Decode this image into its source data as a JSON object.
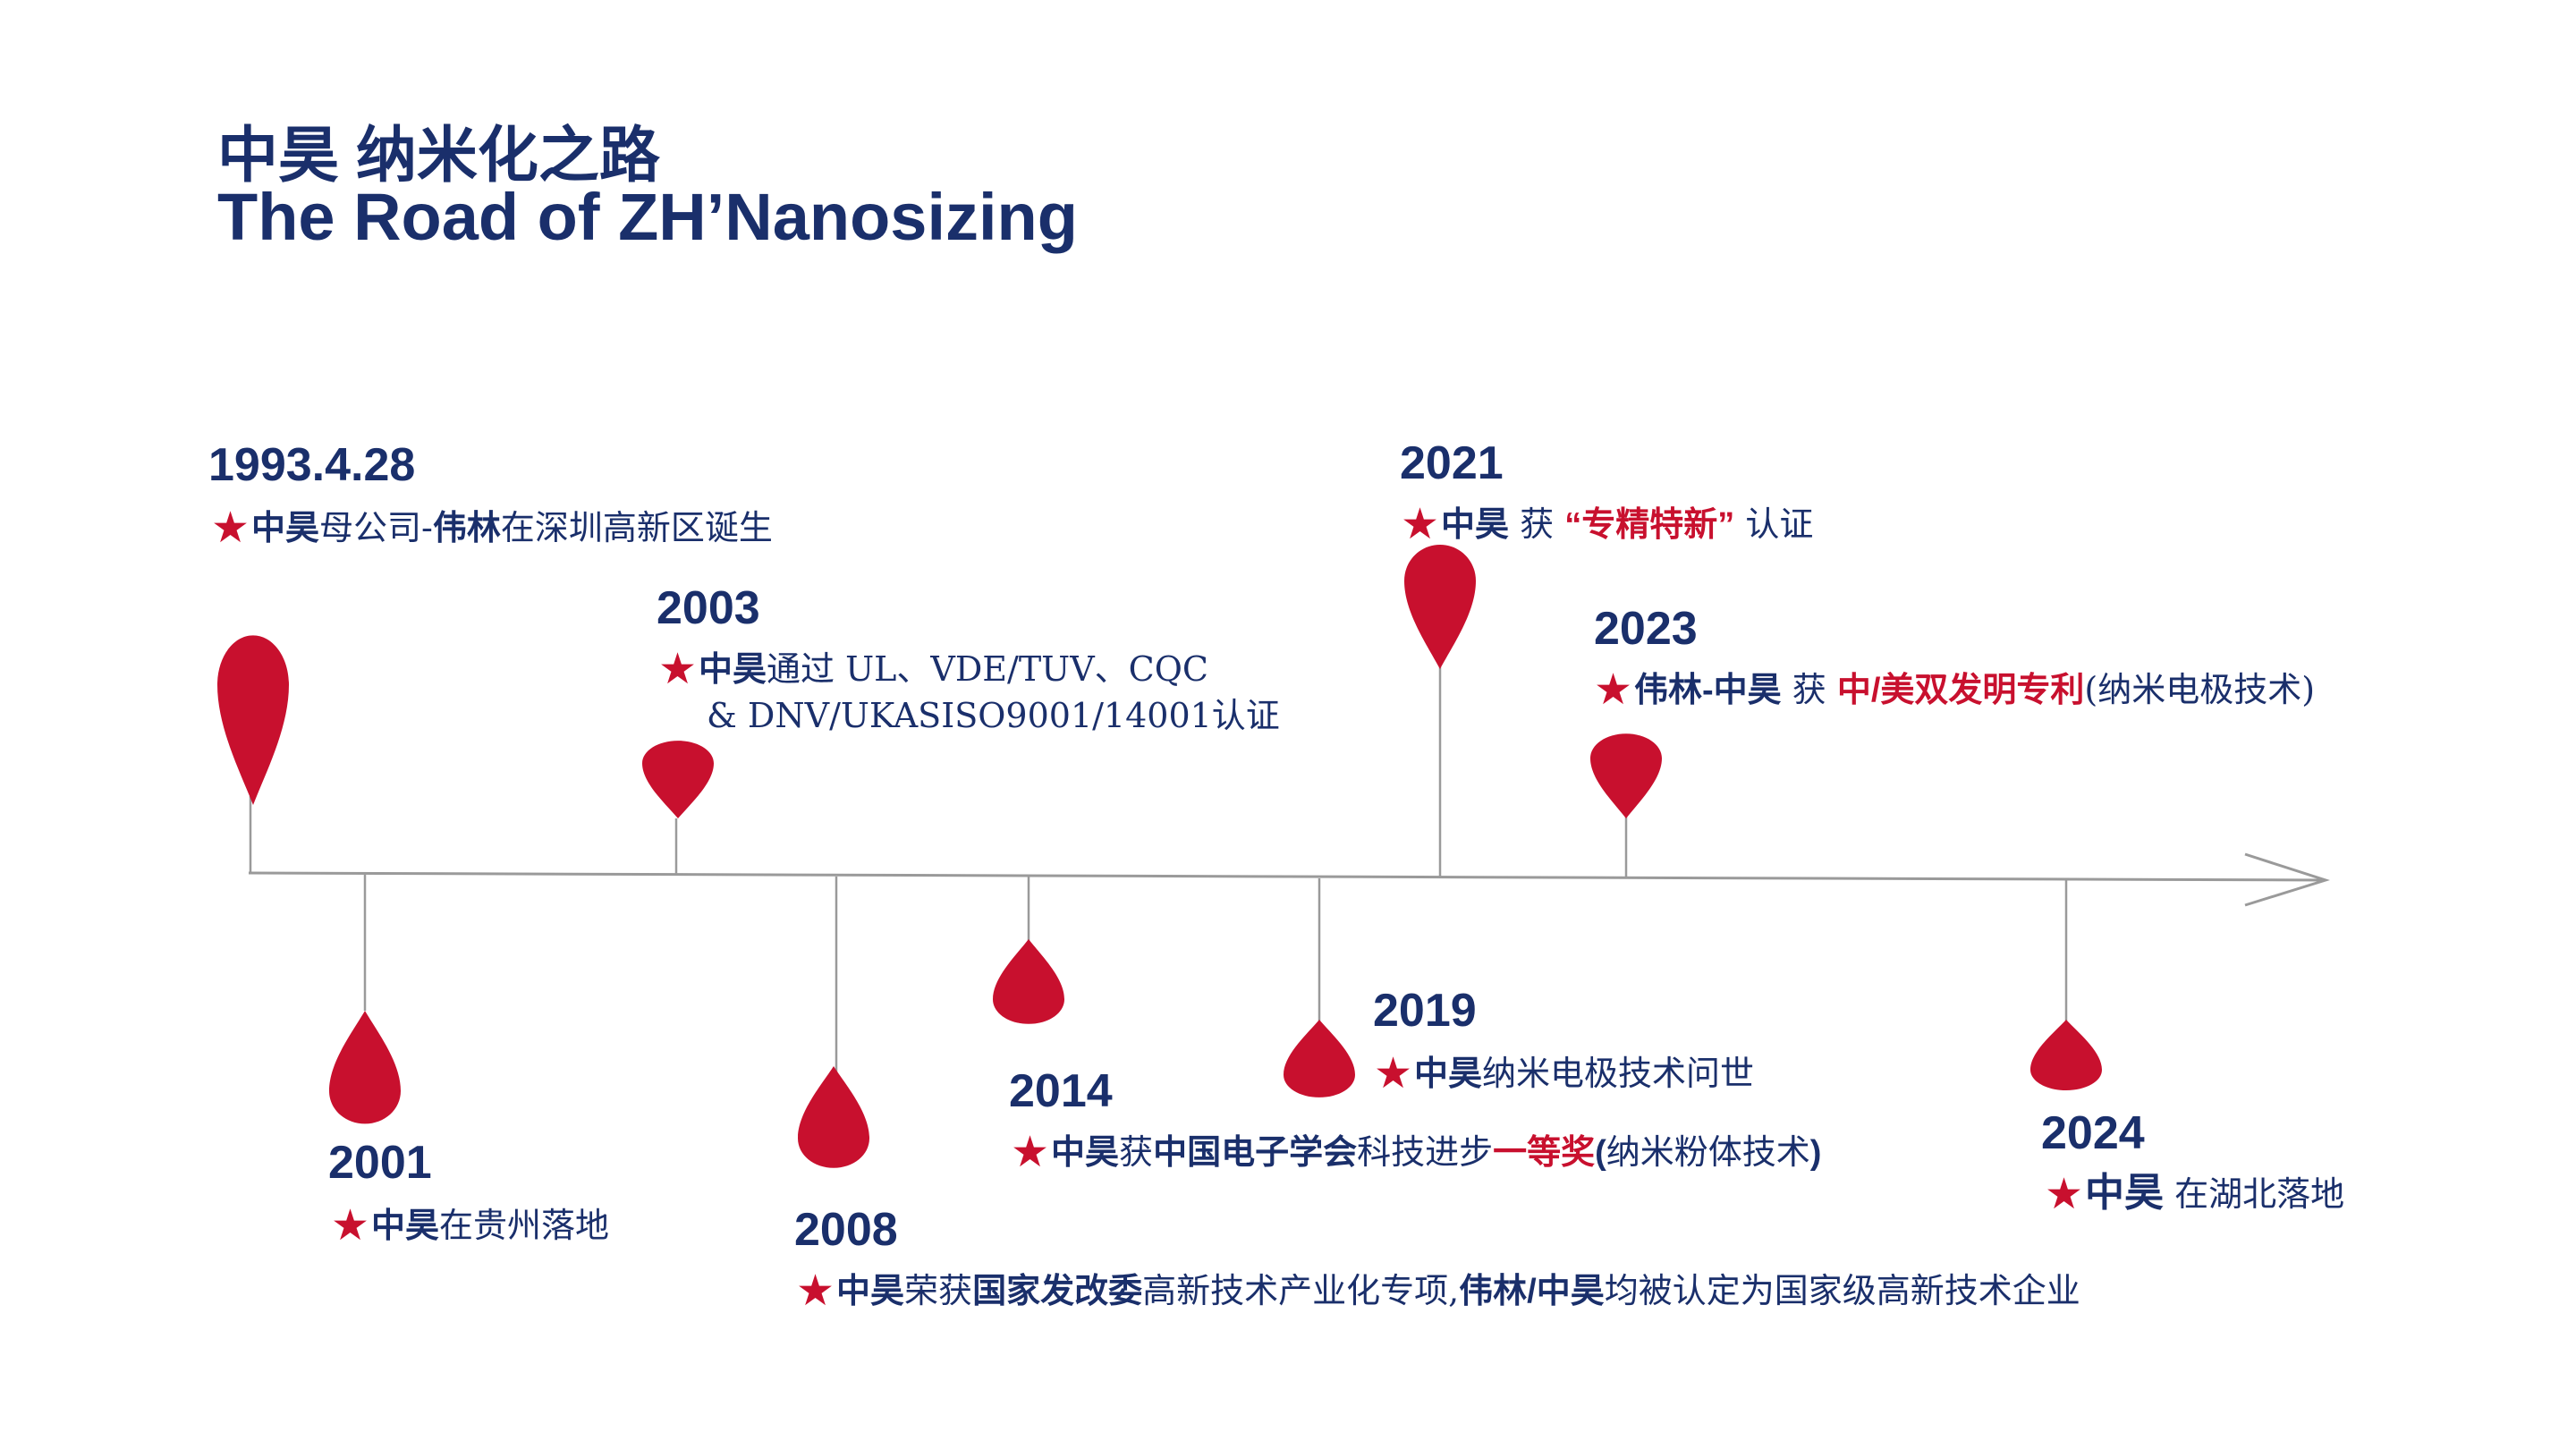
{
  "title": {
    "cn_prefix": "中昊",
    "cn_rest": " 纳米化之路",
    "en": "The Road of ZH’Nanosizing"
  },
  "colors": {
    "primary": "#1a2f6b",
    "accent": "#c8102e",
    "line": "#9a9a9a"
  },
  "events": [
    {
      "year": "1993.4.28",
      "star": "★",
      "parts": [
        "中昊",
        "母公司-",
        "伟林",
        "在深圳高新区诞生"
      ]
    },
    {
      "year": "2001",
      "star": "★",
      "parts": [
        "中昊",
        "在贵州落地"
      ]
    },
    {
      "year": "2003",
      "star": "★",
      "parts": [
        "中昊",
        "通过 UL、VDE/TUV、CQC"
      ],
      "line2": "& DNV/UKASISO9001/14001认证"
    },
    {
      "year": "2008",
      "star": "★",
      "parts": [
        "中昊",
        "荣获",
        "国家发改委",
        "高新技术产业化专项,",
        "伟林/中昊",
        "均被认定为国家级高新技术企业"
      ]
    },
    {
      "year": "2014",
      "star": "★",
      "parts": [
        "中昊",
        "获",
        "中国电子学会",
        "科技进步",
        "一等奖",
        "(",
        "纳米粉体技术",
        ")"
      ]
    },
    {
      "year": "2019",
      "star": "★",
      "parts": [
        "中昊",
        "纳米电极技术问世"
      ]
    },
    {
      "year": "2021",
      "star": "★",
      "parts": [
        "中昊",
        " 获 ",
        "“专精特新”",
        " 认证"
      ]
    },
    {
      "year": "2023",
      "star": "★",
      "parts": [
        "伟林-中昊",
        " 获 ",
        "中/美双发明专利",
        "(纳米电极技术)"
      ]
    },
    {
      "year": "2024",
      "star": "★",
      "parts": [
        "中昊",
        " 在湖北落地"
      ]
    }
  ]
}
